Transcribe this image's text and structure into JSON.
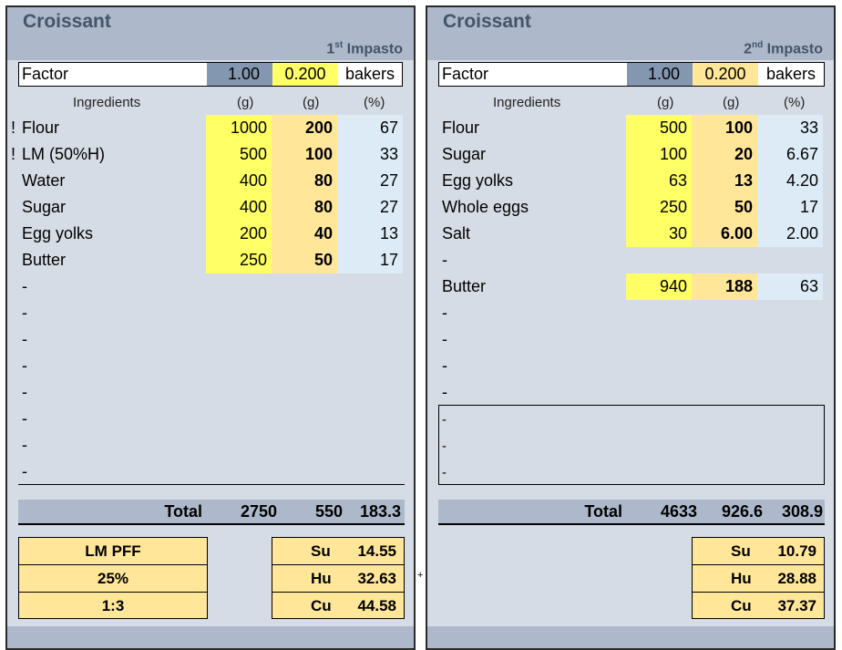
{
  "panels": [
    {
      "title": "Croissant",
      "stage_num": "1",
      "stage_sup": "st",
      "stage_label": "Impasto",
      "factor": {
        "label": "Factor",
        "value": "1.00",
        "ratio": "0.200",
        "unit": "bakers"
      },
      "headers": {
        "ingredients": "Ingredients",
        "g1": "(g)",
        "g2": "(g)",
        "pct": "(%)"
      },
      "rows": [
        {
          "flag": "!",
          "name": "Flour",
          "g": "1000",
          "scaled": "200",
          "pct": "67"
        },
        {
          "flag": "!",
          "name": "LM (50%H)",
          "g": "500",
          "scaled": "100",
          "pct": "33"
        },
        {
          "flag": "",
          "name": "Water",
          "g": "400",
          "scaled": "80",
          "pct": "27"
        },
        {
          "flag": "",
          "name": "Sugar",
          "g": "400",
          "scaled": "80",
          "pct": "27"
        },
        {
          "flag": "",
          "name": "Egg yolks",
          "g": "200",
          "scaled": "40",
          "pct": "13"
        },
        {
          "flag": "",
          "name": "Butter",
          "g": "250",
          "scaled": "50",
          "pct": "17"
        },
        {
          "name": "-"
        },
        {
          "name": "-"
        },
        {
          "name": "-"
        },
        {
          "name": "-"
        },
        {
          "name": "-"
        },
        {
          "name": "-"
        },
        {
          "name": "-"
        },
        {
          "name": "-"
        }
      ],
      "total": {
        "label": "Total",
        "g": "2750",
        "scaled": "550",
        "pct": "183.3"
      },
      "left_box": [
        "LM PFF",
        "25%",
        "1:3"
      ],
      "right_box": [
        {
          "k": "Su",
          "v": "14.55"
        },
        {
          "k": "Hu",
          "v": "32.63"
        },
        {
          "k": "Cu",
          "v": "44.58"
        }
      ]
    },
    {
      "title": "Croissant",
      "stage_num": "2",
      "stage_sup": "nd",
      "stage_label": "Impasto",
      "factor": {
        "label": "Factor",
        "value": "1.00",
        "ratio": "0.200",
        "unit": "bakers"
      },
      "headers": {
        "ingredients": "Ingredients",
        "g1": "(g)",
        "g2": "(g)",
        "pct": "(%)"
      },
      "rows": [
        {
          "name": "Flour",
          "g": "500",
          "scaled": "100",
          "pct": "33"
        },
        {
          "name": "Sugar",
          "g": "100",
          "scaled": "20",
          "pct": "6.67"
        },
        {
          "name": "Egg yolks",
          "g": "63",
          "scaled": "13",
          "pct": "4.20"
        },
        {
          "name": "Whole eggs",
          "g": "250",
          "scaled": "50",
          "pct": "17"
        },
        {
          "name": "Salt",
          "g": "30",
          "scaled": "6.00",
          "pct": "2.00"
        },
        {
          "name": "-"
        },
        {
          "name": "Butter",
          "g": "940",
          "scaled": "188",
          "pct": "63"
        },
        {
          "name": "-"
        },
        {
          "name": "-"
        },
        {
          "name": "-"
        },
        {
          "name": "-"
        },
        {
          "name": "-"
        },
        {
          "name": "-"
        },
        {
          "name": "-"
        }
      ],
      "total": {
        "label": "Total",
        "g": "4633",
        "scaled": "926.6",
        "pct": "308.9"
      },
      "right_box": [
        {
          "k": "Su",
          "v": "10.79"
        },
        {
          "k": "Hu",
          "v": "28.88"
        },
        {
          "k": "Cu",
          "v": "37.37"
        }
      ]
    }
  ],
  "separator": "+",
  "colors": {
    "header": "#adb9ca",
    "body": "#d6dce5",
    "title": "#44546a",
    "yellow": "#ffff66",
    "orange": "#ffe699",
    "blue": "#ddebf7",
    "factor_value_bg": "#8497b0"
  }
}
